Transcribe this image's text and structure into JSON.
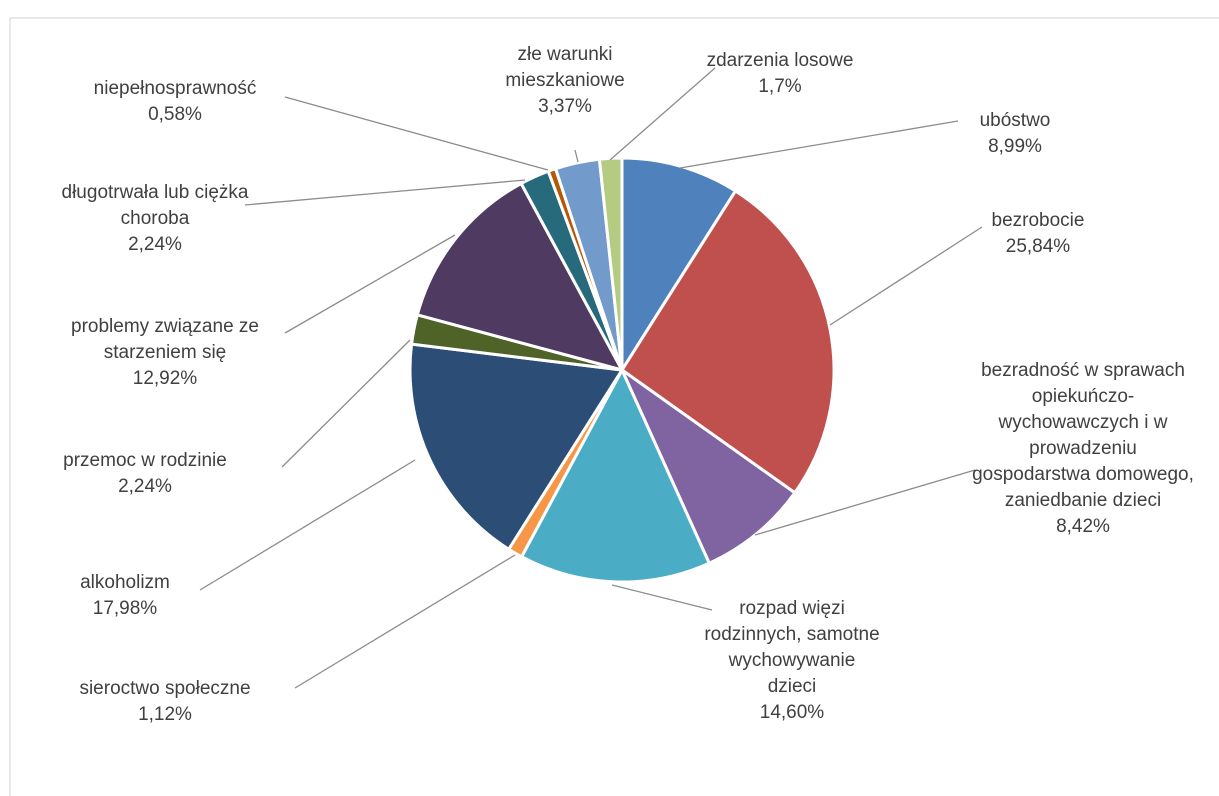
{
  "chart_data": {
    "type": "pie",
    "categories": [
      "ubóstwo",
      "bezrobocie",
      "bezradność w sprawach opiekuńczo-wychowawczych i w prowadzeniu gospodarstwa domowego, zaniedbanie dzieci",
      "rozpad więzi rodzinnych, samotne wychowywanie dzieci",
      "sieroctwo społeczne",
      "alkoholizm",
      "przemoc w rodzinie",
      "problemy związane ze starzeniem się",
      "długotrwała lub ciężka choroba",
      "niepełnosprawność",
      "złe warunki mieszkaniowe",
      "zdarzenia losowe"
    ],
    "values": [
      8.99,
      25.84,
      8.42,
      14.6,
      1.12,
      17.98,
      2.24,
      12.92,
      2.24,
      0.58,
      3.37,
      1.7
    ],
    "value_labels": [
      "8,99%",
      "25,84%",
      "8,42%",
      "14,60%",
      "1,12%",
      "17,98%",
      "2,24%",
      "12,92%",
      "2,24%",
      "0,58%",
      "3,37%",
      "1,7%"
    ],
    "colors": [
      "#4f81bd",
      "#c0504d",
      "#8064a2",
      "#4bacc6",
      "#f79646",
      "#2c4d75",
      "#4f6228",
      "#4f3b62",
      "#276a7c",
      "#b65708",
      "#729aca",
      "#b3cc82"
    ]
  }
}
